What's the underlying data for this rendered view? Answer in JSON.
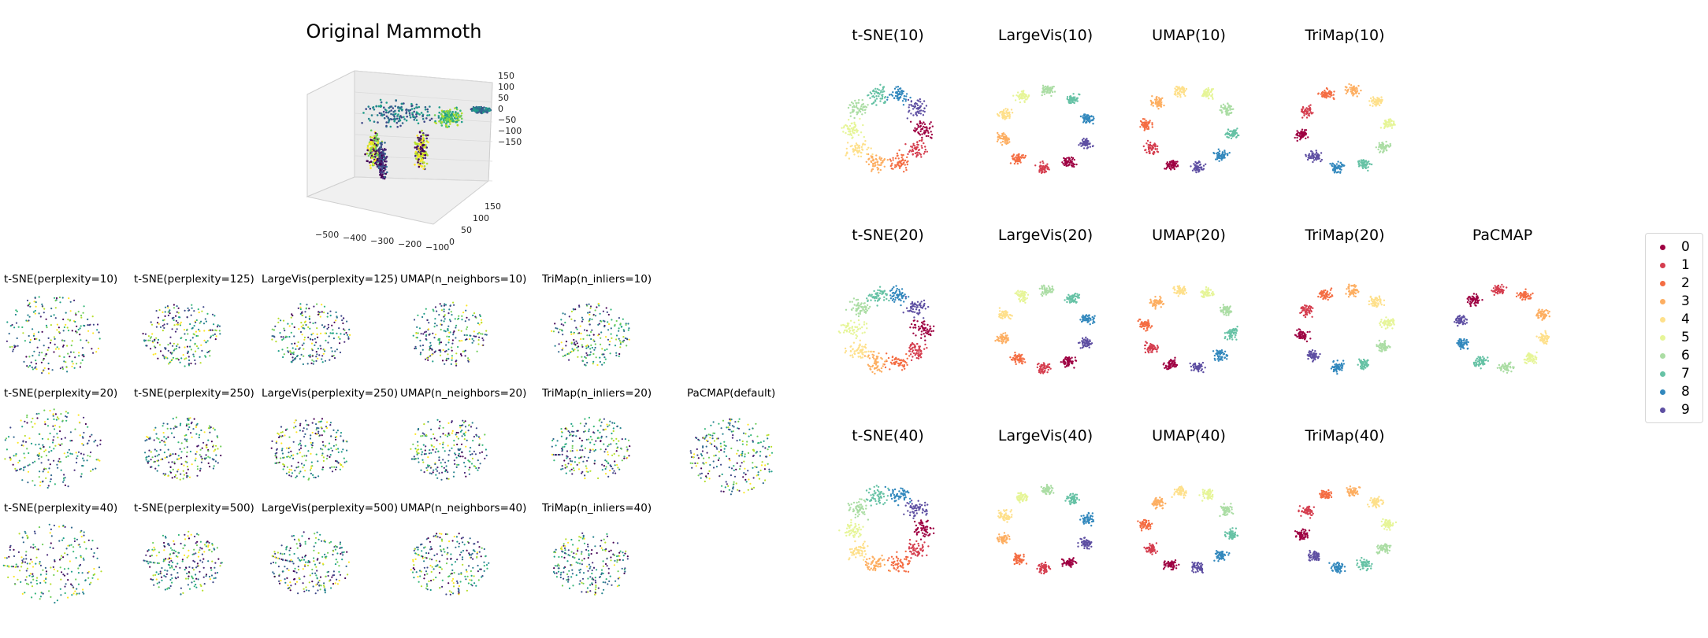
{
  "left_panel": {
    "title": "Original Mammoth",
    "axis3d": {
      "z_ticks": [
        "150",
        "100",
        "50",
        "0",
        "−50",
        "−100",
        "−150"
      ],
      "x_ticks": [
        "−500",
        "−400",
        "−300",
        "−200",
        "−100"
      ],
      "y_ticks": [
        "150",
        "100",
        "50",
        "0"
      ]
    },
    "grid_labels": [
      "t-SNE(perplexity=10)",
      "t-SNE(perplexity=125)",
      "LargeVis(perplexity=125)",
      "UMAP(n_neighbors=10)",
      "TriMap(n_inliers=10)",
      "t-SNE(perplexity=20)",
      "t-SNE(perplexity=250)",
      "LargeVis(perplexity=250)",
      "UMAP(n_neighbors=20)",
      "TriMap(n_inliers=20)",
      "t-SNE(perplexity=40)",
      "t-SNE(perplexity=500)",
      "LargeVis(perplexity=500)",
      "UMAP(n_neighbors=40)",
      "TriMap(n_inliers=40)"
    ],
    "pacmap_label": "PaCMAP(default)"
  },
  "right_panel": {
    "labels": [
      "t-SNE(10)",
      "LargeVis(10)",
      "UMAP(10)",
      "TriMap(10)",
      "t-SNE(20)",
      "LargeVis(20)",
      "UMAP(20)",
      "TriMap(20)",
      "PaCMAP",
      "t-SNE(40)",
      "LargeVis(40)",
      "UMAP(40)",
      "TriMap(40)"
    ],
    "legend": [
      "0",
      "1",
      "2",
      "3",
      "4",
      "5",
      "6",
      "7",
      "8",
      "9"
    ],
    "class_colors": [
      "#9e0142",
      "#d53e4f",
      "#f46d43",
      "#fdae61",
      "#fee08b",
      "#e6f598",
      "#abdda4",
      "#66c2a5",
      "#3288bd",
      "#5e4fa2"
    ]
  },
  "chart_data": [
    {
      "type": "scatter",
      "title": "Original Mammoth",
      "note": "3D scatter",
      "xlim": [
        -550,
        -100
      ],
      "ylim": [
        0,
        150
      ],
      "zlim": [
        -150,
        150
      ]
    },
    {
      "type": "scatter",
      "panels": [
        "t-SNE(perplexity=10)",
        "t-SNE(perplexity=125)",
        "LargeVis(perplexity=125)",
        "UMAP(n_neighbors=10)",
        "TriMap(n_inliers=10)",
        "t-SNE(perplexity=20)",
        "t-SNE(perplexity=250)",
        "LargeVis(perplexity=250)",
        "UMAP(n_neighbors=20)",
        "TriMap(n_inliers=20)",
        "t-SNE(perplexity=40)",
        "t-SNE(perplexity=500)",
        "LargeVis(perplexity=500)",
        "UMAP(n_neighbors=40)",
        "TriMap(n_inliers=40)",
        "PaCMAP(default)"
      ],
      "colormap": "viridis"
    },
    {
      "type": "scatter",
      "panels": [
        "t-SNE(10)",
        "LargeVis(10)",
        "UMAP(10)",
        "TriMap(10)",
        "t-SNE(20)",
        "LargeVis(20)",
        "UMAP(20)",
        "TriMap(20)",
        "PaCMAP",
        "t-SNE(40)",
        "LargeVis(40)",
        "UMAP(40)",
        "TriMap(40)"
      ],
      "legend": [
        "0",
        "1",
        "2",
        "3",
        "4",
        "5",
        "6",
        "7",
        "8",
        "9"
      ],
      "legend_position": "right"
    }
  ]
}
